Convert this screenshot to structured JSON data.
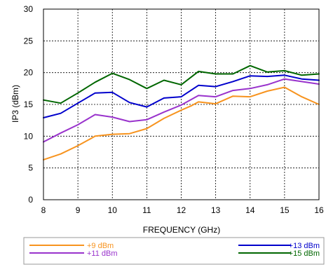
{
  "chart_data": {
    "type": "line",
    "title": "",
    "xlabel": "FREQUENCY (GHz)",
    "ylabel": "IP3 (dBm)",
    "xlim": [
      8,
      16
    ],
    "ylim": [
      0,
      30
    ],
    "xticks": [
      8,
      9,
      10,
      11,
      12,
      13,
      14,
      15,
      16
    ],
    "yticks": [
      0,
      5,
      10,
      15,
      20,
      25,
      30
    ],
    "grid": true,
    "legend_position": "bottom",
    "series": [
      {
        "name": "+9 dBm",
        "color": "#f7931e",
        "x": [
          8,
          8.5,
          9,
          9.3,
          9.5,
          10,
          10.5,
          11,
          11.5,
          12,
          12.3,
          12.5,
          13,
          13.5,
          14,
          14.5,
          15,
          15.5,
          16
        ],
        "y": [
          6.3,
          7.2,
          8.5,
          9.4,
          10,
          10.3,
          10.4,
          11.2,
          12.8,
          14.1,
          14.8,
          15.4,
          15.1,
          16.3,
          16.2,
          17.1,
          17.7,
          16.2,
          15
        ]
      },
      {
        "name": "+11 dBm",
        "color": "#9933cc",
        "x": [
          8,
          8.5,
          9,
          9.5,
          10,
          10.5,
          11,
          11.5,
          12,
          12.5,
          13,
          13.5,
          14,
          14.5,
          15,
          15.5,
          16
        ],
        "y": [
          9.1,
          10.5,
          11.8,
          13.4,
          13,
          12.3,
          12.6,
          13.8,
          14.9,
          16.4,
          16.2,
          17.2,
          17.5,
          18.1,
          19,
          18.6,
          18.2
        ]
      },
      {
        "name": "+13 dBm",
        "color": "#0000cc",
        "x": [
          8,
          8.5,
          9,
          9.5,
          10,
          10.5,
          11,
          11.5,
          12,
          12.5,
          13,
          13.5,
          14,
          14.5,
          15,
          15.5,
          16
        ],
        "y": [
          12.9,
          13.6,
          15.2,
          16.8,
          16.9,
          15.3,
          14.6,
          16,
          16.2,
          18,
          17.8,
          18.6,
          19.5,
          19.4,
          19.6,
          19,
          18.8
        ]
      },
      {
        "name": "+15 dBm",
        "color": "#006600",
        "x": [
          8,
          8.5,
          9,
          9.5,
          10,
          10.5,
          11,
          11.5,
          12,
          12.5,
          13,
          13.5,
          14,
          14.5,
          15,
          15.5,
          16
        ],
        "y": [
          15.7,
          15.2,
          16.8,
          18.5,
          19.9,
          18.9,
          17.5,
          18.8,
          18.1,
          20.2,
          19.8,
          19.8,
          21.1,
          20.1,
          20.3,
          19.6,
          19.8
        ]
      }
    ]
  }
}
